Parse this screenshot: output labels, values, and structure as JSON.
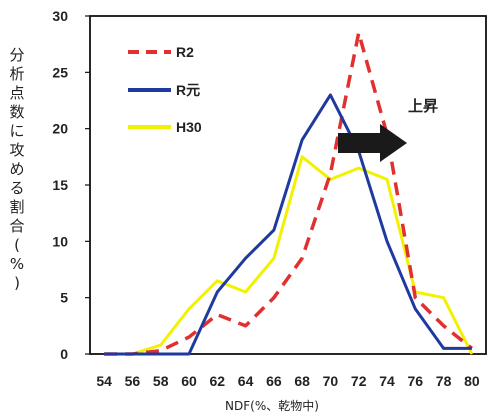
{
  "chart_data": {
    "type": "line",
    "xlabel": "NDF(%、乾物中)",
    "ylabel": "分析点数に攻める割合(%)",
    "x": [
      54,
      56,
      58,
      60,
      62,
      64,
      66,
      68,
      70,
      72,
      74,
      76,
      78,
      80
    ],
    "x_ticks": [
      "54",
      "56",
      "58",
      "60",
      "62",
      "64",
      "66",
      "68",
      "70",
      "72",
      "74",
      "76",
      "78",
      "80"
    ],
    "y_ticks": [
      "0",
      "5",
      "10",
      "15",
      "20",
      "25",
      "30"
    ],
    "xlim": [
      53,
      81
    ],
    "ylim": [
      0,
      30
    ],
    "series": [
      {
        "name": "R2",
        "color": "#e03030",
        "dash": "dashed",
        "values": [
          0,
          0,
          0.3,
          1.5,
          3.5,
          2.5,
          5.0,
          8.5,
          16.0,
          28.5,
          19.5,
          5.0,
          2.5,
          0.5
        ]
      },
      {
        "name": "R元",
        "color": "#1f3a9e",
        "dash": "solid",
        "values": [
          0,
          0,
          0,
          0,
          5.5,
          8.5,
          11.0,
          19.0,
          23.0,
          18.0,
          10.0,
          4.0,
          0.5,
          0.5
        ]
      },
      {
        "name": "H30",
        "color": "#f2f200",
        "dash": "solid",
        "values": [
          0,
          0,
          0.8,
          4.0,
          6.5,
          5.5,
          8.5,
          17.5,
          15.5,
          16.5,
          15.5,
          5.5,
          5.0,
          0
        ]
      }
    ],
    "legend_position": "top-left",
    "annotations": [
      {
        "text": "上昇",
        "icon": "right-arrow"
      }
    ]
  }
}
